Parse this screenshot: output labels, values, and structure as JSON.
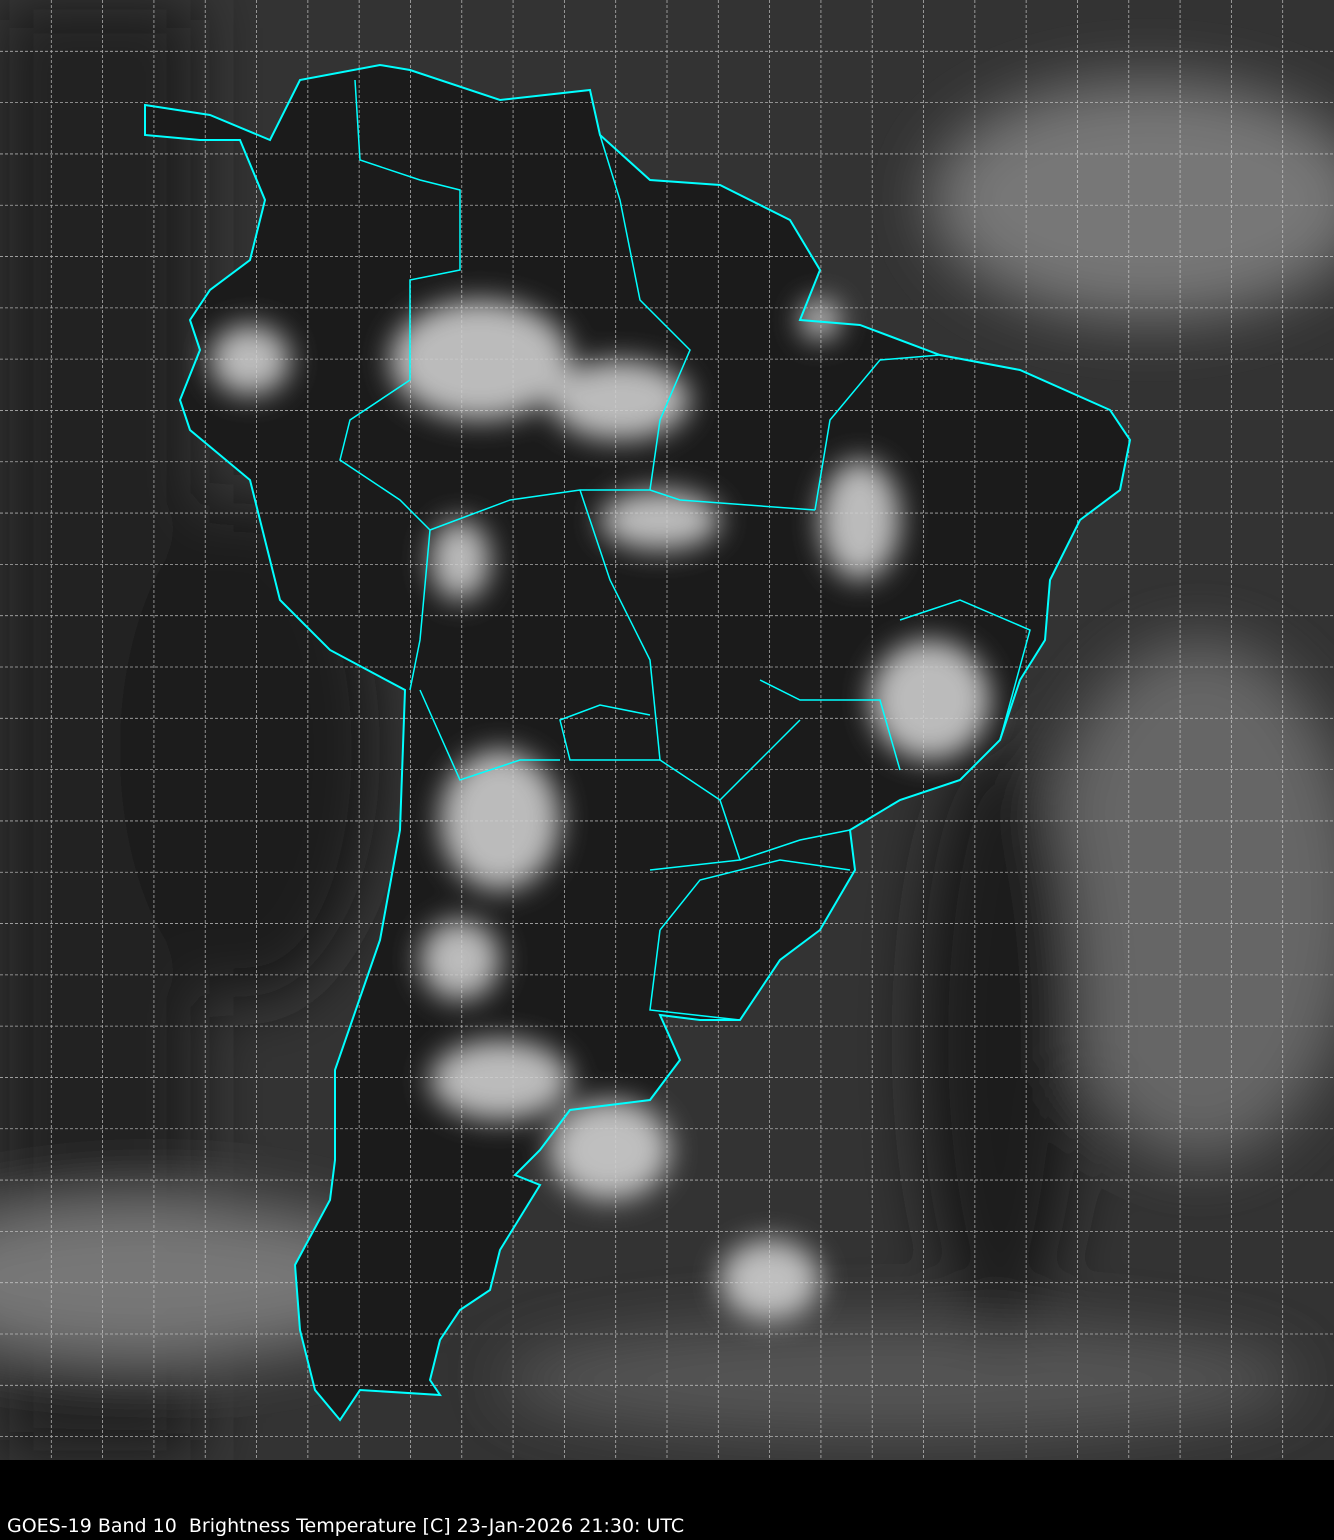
{
  "caption": "GOES-19 Band 10  Brightness Temperature [C] 23-Jan-2026 21:30: UTC",
  "colors": {
    "background": "#000000",
    "coastline": "#00ffff",
    "grid": "#cfcfcf",
    "ocean": "#3a3a3a",
    "land": "#1a1a1a",
    "cloud": "#e0e0e0"
  },
  "grid": {
    "style": "dashed"
  }
}
